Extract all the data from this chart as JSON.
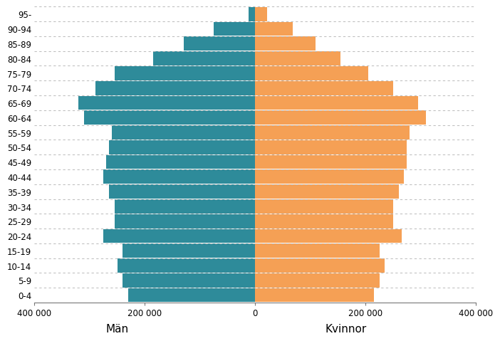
{
  "age_groups": [
    "0-4",
    "5-9",
    "10-14",
    "15-19",
    "20-24",
    "25-29",
    "30-34",
    "35-39",
    "40-44",
    "45-49",
    "50-54",
    "55-59",
    "60-64",
    "65-69",
    "70-74",
    "75-79",
    "80-84",
    "85-89",
    "90-94",
    "95-"
  ],
  "men": [
    230000,
    240000,
    250000,
    240000,
    275000,
    255000,
    255000,
    265000,
    275000,
    270000,
    265000,
    260000,
    310000,
    320000,
    290000,
    255000,
    185000,
    130000,
    75000,
    12000
  ],
  "women": [
    215000,
    225000,
    235000,
    225000,
    265000,
    250000,
    250000,
    260000,
    270000,
    275000,
    275000,
    280000,
    310000,
    295000,
    250000,
    205000,
    155000,
    110000,
    68000,
    22000
  ],
  "men_color": "#2e8b9a",
  "women_color": "#f5a055",
  "background_color": "#ffffff",
  "grid_color": "#b0b0b0",
  "xlabel_men": "Män",
  "xlabel_women": "Kvinnor",
  "xlim": 400000,
  "xtick_labels": [
    "400 000",
    "200 000",
    "0",
    "200 000",
    "400 000"
  ],
  "xtick_positions": [
    -400000,
    -200000,
    0,
    200000,
    400000
  ]
}
